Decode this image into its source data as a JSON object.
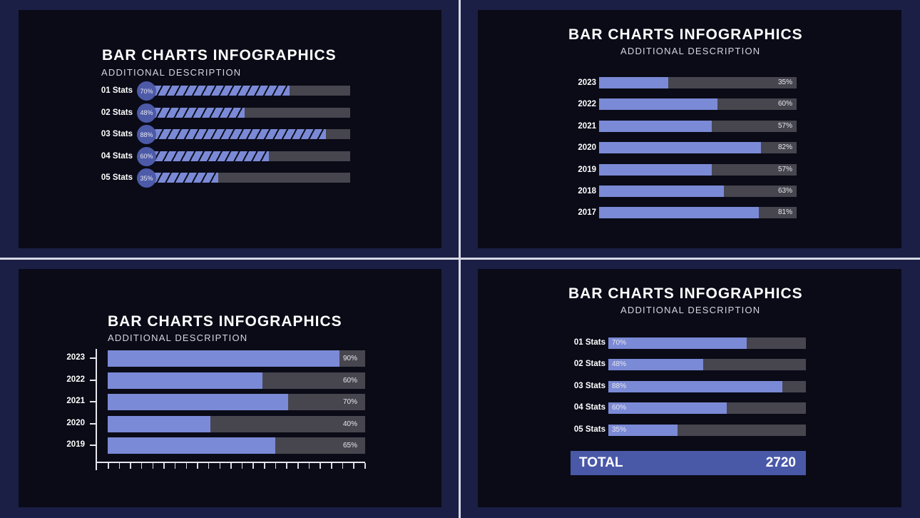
{
  "colors": {
    "background": "#1b1f45",
    "panel": "#0a0b17",
    "bar_fill": "#7b8ad6",
    "bar_track": "#47464f",
    "circle": "#4c5aa8",
    "total_bar": "#4a58a8",
    "divider": "#d6d8e4"
  },
  "panels": {
    "top_left": {
      "title": "BAR CHARTS INFOGRAPHICS",
      "subtitle": "ADDITIONAL DESCRIPTION",
      "rows": [
        {
          "label": "01 Stats",
          "pct": "70%",
          "value": 70
        },
        {
          "label": "02 Stats",
          "pct": "48%",
          "value": 48
        },
        {
          "label": "03 Stats",
          "pct": "88%",
          "value": 88
        },
        {
          "label": "04 Stats",
          "pct": "60%",
          "value": 60
        },
        {
          "label": "05 Stats",
          "pct": "35%",
          "value": 35
        }
      ]
    },
    "top_right": {
      "title": "BAR CHARTS INFOGRAPHICS",
      "subtitle": "ADDITIONAL DESCRIPTION",
      "rows": [
        {
          "label": "2023",
          "pct": "35%",
          "value": 35
        },
        {
          "label": "2022",
          "pct": "60%",
          "value": 60
        },
        {
          "label": "2021",
          "pct": "57%",
          "value": 57
        },
        {
          "label": "2020",
          "pct": "82%",
          "value": 82
        },
        {
          "label": "2019",
          "pct": "57%",
          "value": 57
        },
        {
          "label": "2018",
          "pct": "63%",
          "value": 63
        },
        {
          "label": "2017",
          "pct": "81%",
          "value": 81
        }
      ]
    },
    "bottom_left": {
      "title": "BAR CHARTS INFOGRAPHICS",
      "subtitle": "ADDITIONAL DESCRIPTION",
      "rows": [
        {
          "label": "2023",
          "pct": "90%",
          "value": 90
        },
        {
          "label": "2022",
          "pct": "60%",
          "value": 60
        },
        {
          "label": "2021",
          "pct": "70%",
          "value": 70
        },
        {
          "label": "2020",
          "pct": "40%",
          "value": 40
        },
        {
          "label": "2019",
          "pct": "65%",
          "value": 65
        }
      ],
      "x_tick_count": 24
    },
    "bottom_right": {
      "title": "BAR CHARTS INFOGRAPHICS",
      "subtitle": "ADDITIONAL DESCRIPTION",
      "rows": [
        {
          "label": "01 Stats",
          "pct": "70%",
          "value": 70
        },
        {
          "label": "02 Stats",
          "pct": "48%",
          "value": 48
        },
        {
          "label": "03 Stats",
          "pct": "88%",
          "value": 88
        },
        {
          "label": "04 Stats",
          "pct": "60%",
          "value": 60
        },
        {
          "label": "05 Stats",
          "pct": "35%",
          "value": 35
        }
      ],
      "total_label": "TOTAL",
      "total_value": "2720"
    }
  },
  "chart_data": [
    {
      "type": "bar",
      "orientation": "horizontal",
      "title": "BAR CHARTS INFOGRAPHICS",
      "subtitle": "ADDITIONAL DESCRIPTION",
      "categories": [
        "01 Stats",
        "02 Stats",
        "03 Stats",
        "04 Stats",
        "05 Stats"
      ],
      "values": [
        70,
        48,
        88,
        60,
        35
      ],
      "unit": "%",
      "xlim": [
        0,
        100
      ],
      "style": "striped progress bars with circular percentage badges"
    },
    {
      "type": "bar",
      "orientation": "horizontal",
      "title": "BAR CHARTS INFOGRAPHICS",
      "subtitle": "ADDITIONAL DESCRIPTION",
      "categories": [
        "2023",
        "2022",
        "2021",
        "2020",
        "2019",
        "2018",
        "2017"
      ],
      "values": [
        35,
        60,
        57,
        82,
        57,
        63,
        81
      ],
      "unit": "%",
      "xlim": [
        0,
        100
      ]
    },
    {
      "type": "bar",
      "orientation": "horizontal",
      "title": "BAR CHARTS INFOGRAPHICS",
      "subtitle": "ADDITIONAL DESCRIPTION",
      "categories": [
        "2023",
        "2022",
        "2021",
        "2020",
        "2019"
      ],
      "values": [
        90,
        60,
        70,
        40,
        65
      ],
      "unit": "%",
      "xlim": [
        0,
        100
      ],
      "axes": "L-shaped axis with y ticks per row and 24 x ticks, no tick labels"
    },
    {
      "type": "bar",
      "orientation": "horizontal",
      "title": "BAR CHARTS INFOGRAPHICS",
      "subtitle": "ADDITIONAL DESCRIPTION",
      "categories": [
        "01 Stats",
        "02 Stats",
        "03 Stats",
        "04 Stats",
        "05 Stats"
      ],
      "values": [
        70,
        48,
        88,
        60,
        35
      ],
      "unit": "%",
      "xlim": [
        0,
        100
      ],
      "annotation": "TOTAL 2720"
    }
  ]
}
